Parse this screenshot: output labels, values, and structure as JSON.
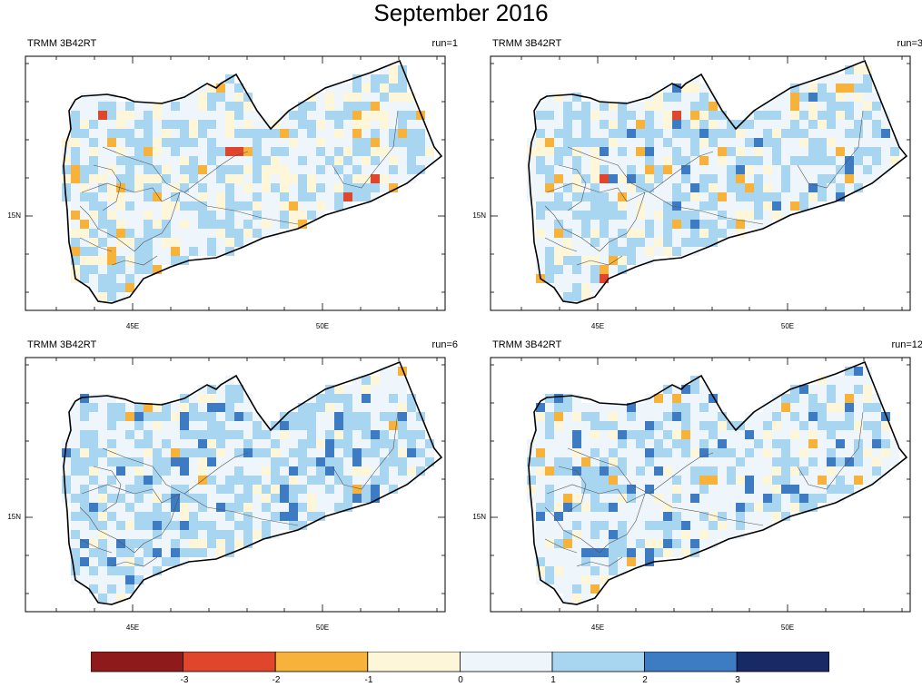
{
  "title": "September 2016",
  "panels": [
    {
      "source": "TRMM 3B42RT",
      "run": "run=1",
      "lat_label": "15N",
      "lon_labels": [
        "45E",
        "50E"
      ]
    },
    {
      "source": "TRMM 3B42RT",
      "run": "run=3",
      "lat_label": "15N",
      "lon_labels": [
        "45E",
        "50E"
      ]
    },
    {
      "source": "TRMM 3B42RT",
      "run": "run=6",
      "lat_label": "15N",
      "lon_labels": [
        "45E",
        "50E"
      ]
    },
    {
      "source": "TRMM 3B42RT",
      "run": "run=12",
      "lat_label": "15N",
      "lon_labels": [
        "45E",
        "50E"
      ]
    }
  ],
  "colorbar": {
    "colors": [
      "#8e1a1c",
      "#e0462c",
      "#f7b23c",
      "#fdf6d8",
      "#eef6fb",
      "#a8d6f0",
      "#3d7bc3",
      "#182a66"
    ],
    "labels": [
      "-3",
      "-2",
      "-1",
      "0",
      "1",
      "2",
      "3"
    ]
  }
}
